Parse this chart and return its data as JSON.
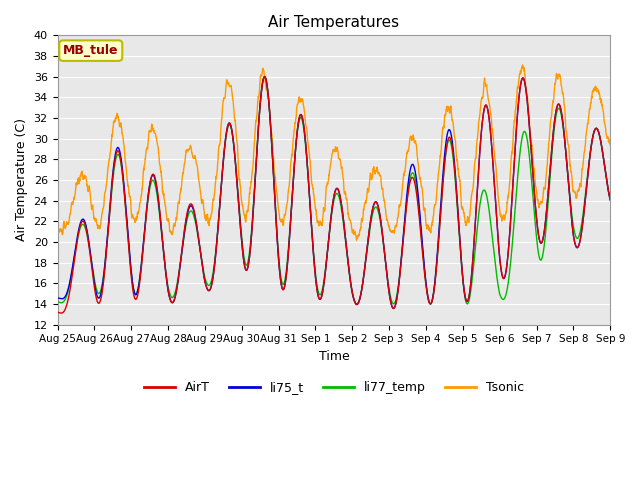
{
  "title": "Air Temperatures",
  "xlabel": "Time",
  "ylabel": "Air Temperature (C)",
  "ylim": [
    12,
    40
  ],
  "yticks": [
    12,
    14,
    16,
    18,
    20,
    22,
    24,
    26,
    28,
    30,
    32,
    34,
    36,
    38,
    40
  ],
  "colors": {
    "AirT": "#dd0000",
    "li75_t": "#0000dd",
    "li77_temp": "#00bb00",
    "Tsonic": "#ff9900"
  },
  "legend_labels": [
    "AirT",
    "li75_t",
    "li77_temp",
    "Tsonic"
  ],
  "annotation_text": "MB_tule",
  "annotation_bg": "#ffffcc",
  "annotation_border": "#bbbb00",
  "plot_bg": "#e8e8e8",
  "grid_color": "#ffffff",
  "xtick_labels": [
    "Aug 25",
    "Aug 26",
    "Aug 27",
    "Aug 28",
    "Aug 29",
    "Aug 30",
    "Aug 31",
    "Sep 1",
    "Sep 2",
    "Sep 3",
    "Sep 4",
    "Sep 5",
    "Sep 6",
    "Sep 7",
    "Sep 8",
    "Sep 9"
  ],
  "n_days": 15,
  "samples_per_day": 144
}
